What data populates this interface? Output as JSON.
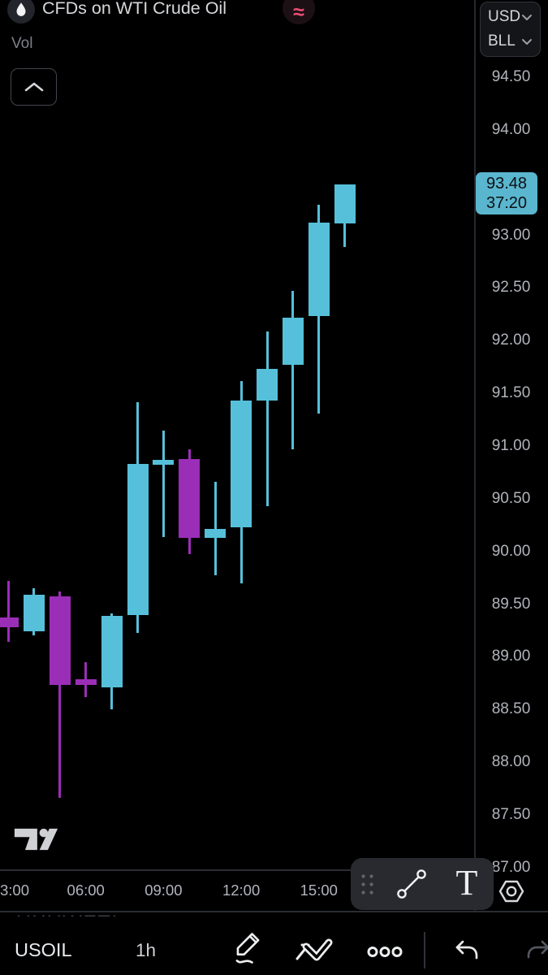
{
  "header": {
    "title": "CFDs on WTI Crude Oil",
    "status_badge": "≈",
    "currency": "USD",
    "unit": "BLL",
    "pane_label": "Vol"
  },
  "price_label": {
    "price": "93.48",
    "countdown": "37:20"
  },
  "watermark": "UXUWETI",
  "toolbar": {
    "text_tool_label": "T"
  },
  "bottom_bar": {
    "symbol": "USOIL",
    "interval": "1h"
  },
  "colors": {
    "up": "#56c0da",
    "down": "#9b2eb7",
    "price_label_bg": "#5ab5ce",
    "axis_text": "#b1b4bb",
    "toolbar_bg": "#282a30"
  },
  "chart_data": {
    "type": "candlestick",
    "title": "CFDs on WTI Crude Oil",
    "interval": "1h",
    "background": "#000000",
    "grid": false,
    "y_axis_side": "right",
    "y_ticks": [
      "94.50",
      "94.00",
      "93.00",
      "92.50",
      "92.00",
      "91.50",
      "91.00",
      "90.50",
      "90.00",
      "89.50",
      "89.00",
      "88.50",
      "88.00",
      "87.50",
      "87.00"
    ],
    "y_range": [
      87.0,
      94.6
    ],
    "x_labels": [
      {
        "text": "3:00",
        "slot": 0
      },
      {
        "text": "06:00",
        "slot": 3
      },
      {
        "text": "09:00",
        "slot": 6
      },
      {
        "text": "12:00",
        "slot": 9
      },
      {
        "text": "15:00",
        "slot": 12
      }
    ],
    "last_price": 93.48,
    "candles": [
      {
        "time": "03:00",
        "open": 89.37,
        "high": 89.72,
        "low": 89.14,
        "close": 89.28
      },
      {
        "time": "04:00",
        "open": 89.24,
        "high": 89.65,
        "low": 89.2,
        "close": 89.59
      },
      {
        "time": "05:00",
        "open": 89.57,
        "high": 89.62,
        "low": 87.66,
        "close": 88.73
      },
      {
        "time": "06:00",
        "open": 88.79,
        "high": 88.95,
        "low": 88.62,
        "close": 88.73
      },
      {
        "time": "07:00",
        "open": 88.71,
        "high": 89.41,
        "low": 88.5,
        "close": 89.39
      },
      {
        "time": "08:00",
        "open": 89.4,
        "high": 91.42,
        "low": 89.23,
        "close": 90.83
      },
      {
        "time": "09:00",
        "open": 90.82,
        "high": 91.15,
        "low": 90.14,
        "close": 90.87
      },
      {
        "time": "10:00",
        "open": 90.88,
        "high": 90.97,
        "low": 89.97,
        "close": 90.13
      },
      {
        "time": "11:00",
        "open": 90.13,
        "high": 90.66,
        "low": 89.77,
        "close": 90.21
      },
      {
        "time": "12:00",
        "open": 90.23,
        "high": 91.62,
        "low": 89.7,
        "close": 91.43
      },
      {
        "time": "13:00",
        "open": 91.43,
        "high": 92.09,
        "low": 90.43,
        "close": 91.73
      },
      {
        "time": "14:00",
        "open": 91.77,
        "high": 92.47,
        "low": 90.97,
        "close": 92.22
      },
      {
        "time": "15:00",
        "open": 92.23,
        "high": 93.29,
        "low": 91.31,
        "close": 93.12
      },
      {
        "time": "16:00",
        "open": 93.11,
        "high": 93.48,
        "low": 92.89,
        "close": 93.48
      }
    ]
  }
}
